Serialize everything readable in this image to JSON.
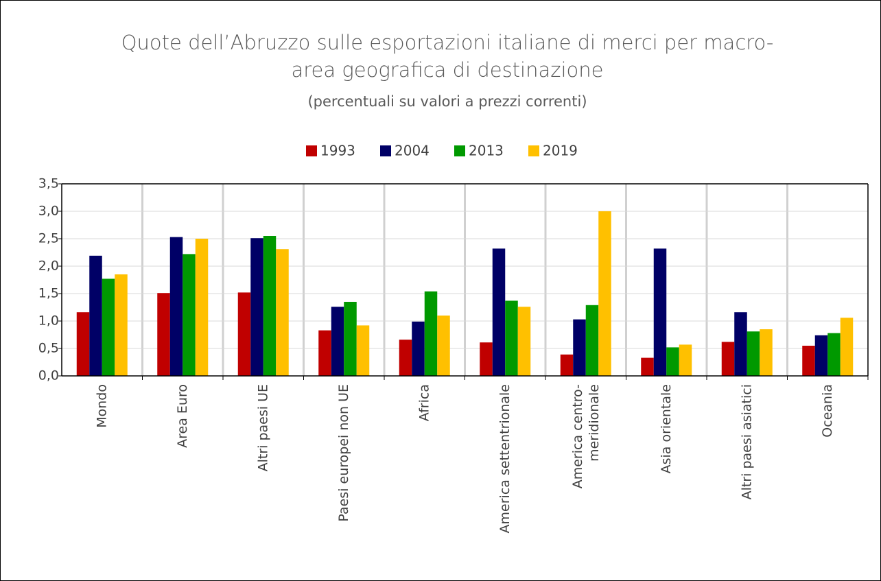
{
  "chart_data": {
    "type": "bar",
    "title": "Quote dell’Abruzzo sulle esportazioni italiane di merci per macro-\narea geografica di destinazione",
    "subtitle": "(percentuali su valori a prezzi correnti)",
    "categories": [
      "Mondo",
      "Area Euro",
      "Altri paesi UE",
      "Paesi europei non UE",
      "Africa",
      "America settentrionale",
      "America centro-\nmeridionale",
      "Asia orientale",
      "Altri paesi asiatici",
      "Oceania"
    ],
    "series": [
      {
        "name": "1993",
        "color": "#c00000",
        "values": [
          1.16,
          1.51,
          1.52,
          0.83,
          0.66,
          0.61,
          0.39,
          0.33,
          0.62,
          0.55
        ]
      },
      {
        "name": "2004",
        "color": "#000066",
        "values": [
          2.19,
          2.53,
          2.51,
          1.26,
          0.99,
          2.32,
          1.03,
          2.32,
          1.16,
          0.74
        ]
      },
      {
        "name": "2013",
        "color": "#009900",
        "values": [
          1.77,
          2.22,
          2.55,
          1.35,
          1.54,
          1.37,
          1.29,
          0.52,
          0.81,
          0.78
        ]
      },
      {
        "name": "2019",
        "color": "#ffc000",
        "values": [
          1.85,
          2.5,
          2.31,
          0.92,
          1.1,
          1.26,
          3.0,
          0.57,
          0.85,
          1.06
        ]
      }
    ],
    "ylim": [
      0,
      3.5
    ],
    "yticks": [
      {
        "value": 0,
        "label": "0,0"
      },
      {
        "value": 0.5,
        "label": "0,5"
      },
      {
        "value": 1,
        "label": "1,0"
      },
      {
        "value": 1.5,
        "label": "1,5"
      },
      {
        "value": 2,
        "label": "2,0"
      },
      {
        "value": 2.5,
        "label": "2,5"
      },
      {
        "value": 3,
        "label": "3,0"
      },
      {
        "value": 3.5,
        "label": "3,5"
      }
    ],
    "grid": true,
    "legend": "top"
  }
}
